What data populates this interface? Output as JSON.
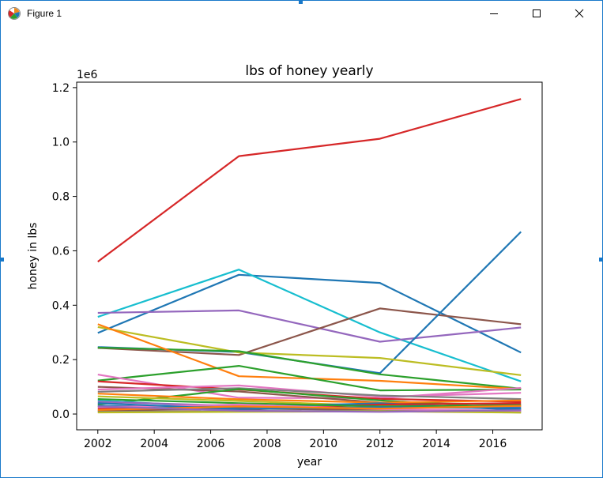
{
  "window": {
    "title": "Figure 1",
    "icons": {
      "app": "matplotlib-icon",
      "minimize": "minimize-icon",
      "maximize": "maximize-icon",
      "close": "close-icon"
    }
  },
  "chart_data": {
    "type": "line",
    "title": "lbs of honey yearly",
    "xlabel": "year",
    "ylabel": "honey in lbs",
    "offset_text": "1e6",
    "xlim": [
      2001.25,
      2017.75
    ],
    "ylim": [
      -0.058,
      1.22
    ],
    "x_ticks": [
      2002,
      2004,
      2006,
      2008,
      2010,
      2012,
      2014,
      2016
    ],
    "y_ticks": [
      0.0,
      0.2,
      0.4,
      0.6,
      0.8,
      1.0,
      1.2
    ],
    "y_tick_labels": [
      "0.0",
      "0.2",
      "0.4",
      "0.6",
      "0.8",
      "1.0",
      "1.2"
    ],
    "x": [
      2002,
      2007,
      2012,
      2017
    ],
    "grid": false,
    "series": [
      {
        "color": "#d62728",
        "values": [
          0.56,
          0.948,
          1.012,
          1.158
        ]
      },
      {
        "color": "#1f77b4",
        "values": [
          0.298,
          0.512,
          0.482,
          0.226
        ]
      },
      {
        "color": "#17becf",
        "values": [
          0.357,
          0.531,
          0.3,
          0.12
        ]
      },
      {
        "color": "#9467bd",
        "values": [
          0.372,
          0.381,
          0.266,
          0.318
        ]
      },
      {
        "color": "#8c564b",
        "values": [
          0.243,
          0.217,
          0.388,
          0.33
        ]
      },
      {
        "color": "#1f77b4",
        "values": [
          0.246,
          0.228,
          0.15,
          0.67
        ]
      },
      {
        "color": "#bcbd22",
        "values": [
          0.32,
          0.226,
          0.206,
          0.143
        ]
      },
      {
        "color": "#2ca02c",
        "values": [
          0.244,
          0.231,
          0.146,
          0.093
        ]
      },
      {
        "color": "#ff7f0e",
        "values": [
          0.33,
          0.139,
          0.122,
          0.092
        ]
      },
      {
        "color": "#2ca02c",
        "values": [
          0.123,
          0.177,
          0.087,
          0.09
        ]
      },
      {
        "color": "#e377c2",
        "values": [
          0.145,
          0.06,
          0.058,
          0.096
        ]
      },
      {
        "color": "#d62728",
        "values": [
          0.12,
          0.09,
          0.056,
          0.045
        ]
      },
      {
        "color": "#8c564b",
        "values": [
          0.1,
          0.083,
          0.042,
          0.035
        ]
      },
      {
        "color": "#e377c2",
        "values": [
          0.09,
          0.105,
          0.063,
          0.078
        ]
      },
      {
        "color": "#7f7f7f",
        "values": [
          0.082,
          0.095,
          0.068,
          0.055
        ]
      },
      {
        "color": "#2ca02c",
        "values": [
          0.035,
          0.092,
          0.05,
          0.02
        ]
      },
      {
        "color": "#ff7f0e",
        "values": [
          0.075,
          0.054,
          0.042,
          0.05
        ]
      },
      {
        "color": "#bcbd22",
        "values": [
          0.065,
          0.048,
          0.03,
          0.025
        ]
      },
      {
        "color": "#17becf",
        "values": [
          0.05,
          0.022,
          0.038,
          0.018
        ]
      },
      {
        "color": "#1f77b4",
        "values": [
          0.03,
          0.025,
          0.04,
          0.015
        ]
      },
      {
        "color": "#9467bd",
        "values": [
          0.045,
          0.03,
          0.022,
          0.028
        ]
      },
      {
        "color": "#d62728",
        "values": [
          0.02,
          0.015,
          0.035,
          0.04
        ]
      },
      {
        "color": "#8c564b",
        "values": [
          0.012,
          0.02,
          0.015,
          0.01
        ]
      },
      {
        "color": "#7f7f7f",
        "values": [
          0.008,
          0.01,
          0.012,
          0.006
        ]
      },
      {
        "color": "#2ca02c",
        "values": [
          0.055,
          0.04,
          0.028,
          0.032
        ]
      },
      {
        "color": "#e377c2",
        "values": [
          0.025,
          0.035,
          0.018,
          0.012
        ]
      },
      {
        "color": "#1f77b4",
        "values": [
          0.04,
          0.018,
          0.025,
          0.022
        ]
      },
      {
        "color": "#ff7f0e",
        "values": [
          0.015,
          0.028,
          0.02,
          0.03
        ]
      },
      {
        "color": "#bcbd22",
        "values": [
          0.006,
          0.008,
          0.01,
          0.005
        ]
      },
      {
        "color": "#9467bd",
        "values": [
          0.028,
          0.012,
          0.008,
          0.014
        ]
      }
    ]
  }
}
